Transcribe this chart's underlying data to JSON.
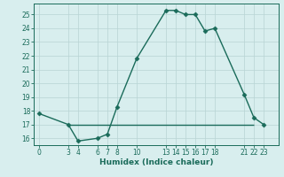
{
  "xlabel": "Humidex (Indice chaleur)",
  "x": [
    0,
    3,
    4,
    6,
    7,
    8,
    10,
    13,
    14,
    15,
    16,
    17,
    18,
    21,
    22,
    23
  ],
  "y": [
    17.8,
    17.0,
    15.8,
    16.0,
    16.3,
    18.3,
    21.8,
    25.3,
    25.3,
    25.0,
    25.0,
    23.8,
    24.0,
    19.2,
    17.5,
    17.0
  ],
  "hline_y": 17.0,
  "hline_x_start": 3,
  "hline_x_end": 22,
  "line_color": "#1a6b5a",
  "bg_color": "#d8eeee",
  "grid_color": "#b8d4d4",
  "ylim": [
    15.5,
    25.8
  ],
  "xlim": [
    -0.5,
    24.5
  ],
  "yticks": [
    16,
    17,
    18,
    19,
    20,
    21,
    22,
    23,
    24,
    25
  ],
  "xticks": [
    0,
    3,
    4,
    6,
    7,
    8,
    10,
    13,
    14,
    15,
    16,
    17,
    18,
    21,
    22,
    23
  ],
  "marker": "D",
  "markersize": 2.5,
  "linewidth": 1.0,
  "tick_fontsize": 5.5,
  "xlabel_fontsize": 6.5
}
